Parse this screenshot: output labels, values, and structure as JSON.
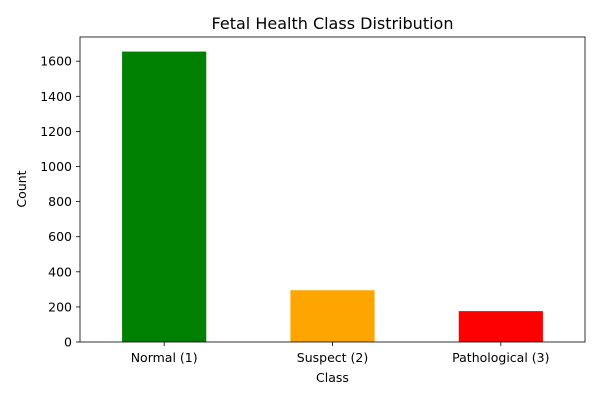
{
  "chart_data": {
    "type": "bar",
    "title": "Fetal Health Class Distribution",
    "xlabel": "Class",
    "ylabel": "Count",
    "categories": [
      "Normal (1)",
      "Suspect (2)",
      "Pathological (3)"
    ],
    "values": [
      1655,
      295,
      176
    ],
    "colors": [
      "#008000",
      "#ffa500",
      "#ff0000"
    ],
    "ylim": [
      0,
      1738
    ],
    "yticks": [
      0,
      200,
      400,
      600,
      800,
      1000,
      1200,
      1400,
      1600
    ],
    "grid": false,
    "legend": "none"
  }
}
